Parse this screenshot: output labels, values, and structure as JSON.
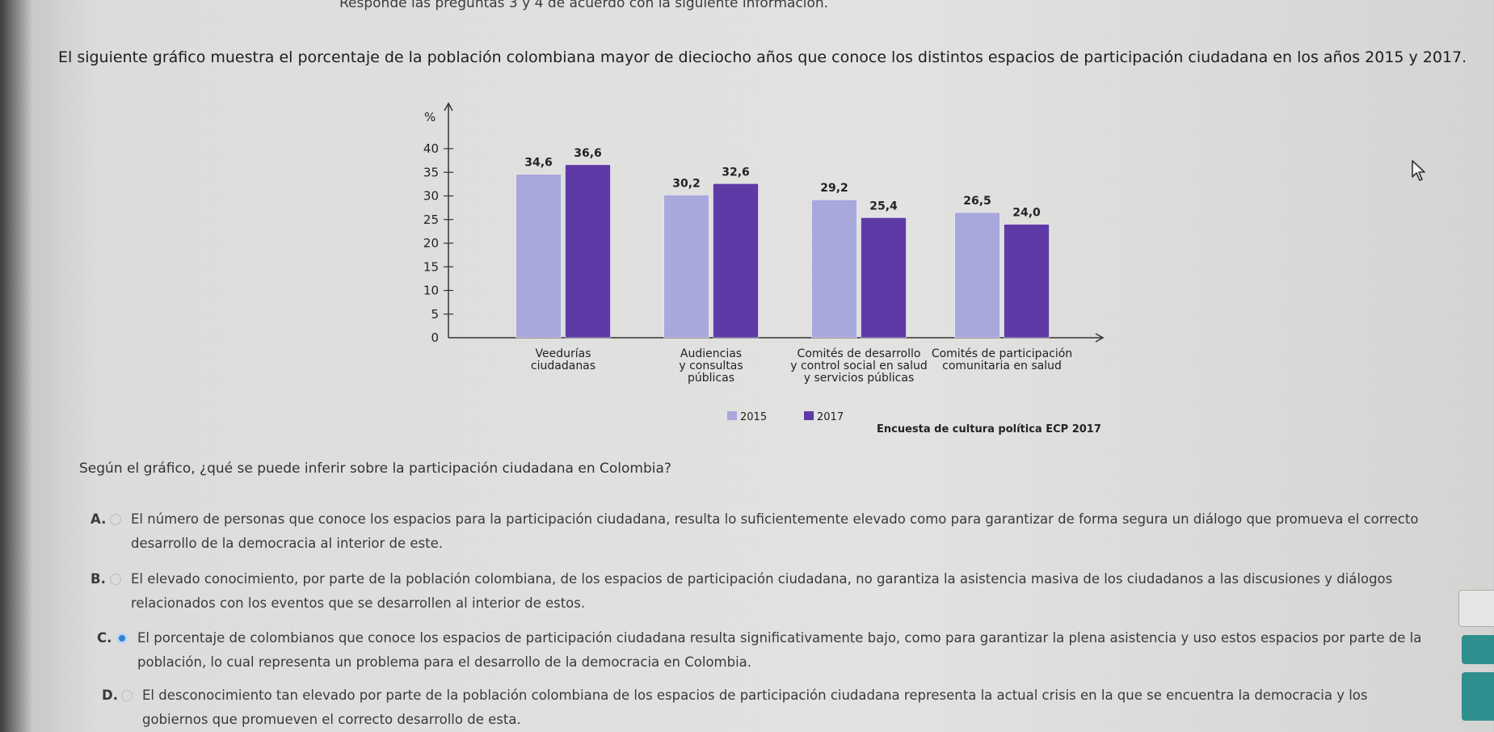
{
  "header": {
    "top_line": "Responde las preguntas 3 y 4 de acuerdo con la siguiente información.",
    "intro": "El siguiente gráfico muestra el porcentaje de la población colombiana mayor de dieciocho años que conoce los distintos espacios de participación ciudadana en los años 2015 y 2017."
  },
  "chart_data": {
    "type": "bar",
    "ylabel": "%",
    "ylim": [
      0,
      40
    ],
    "yticks": [
      0,
      5,
      10,
      15,
      20,
      25,
      30,
      35,
      40
    ],
    "categories": [
      [
        "Veedurías",
        "ciudadanas"
      ],
      [
        "Audiencias",
        "y consultas",
        "públicas"
      ],
      [
        "Comités de desarrollo",
        "y control social en salud",
        "y servicios públicas"
      ],
      [
        "Comités de participación",
        "comunitaria en salud"
      ]
    ],
    "series": [
      {
        "name": "2015",
        "color": "#a8a8dc",
        "values": [
          34.6,
          30.2,
          29.2,
          26.5
        ],
        "labels": [
          "34,6",
          "30,2",
          "29,2",
          "26,5"
        ]
      },
      {
        "name": "2017",
        "color": "#5e3aa6",
        "values": [
          36.6,
          32.6,
          25.4,
          24.0
        ],
        "labels": [
          "36,6",
          "32,6",
          "25,4",
          "24,0"
        ]
      }
    ],
    "legend_position": "bottom",
    "source": "Encuesta de cultura política ECP 2017"
  },
  "question": {
    "text": "Según el gráfico, ¿qué se puede inferir sobre la participación ciudadana en Colombia?",
    "options": [
      {
        "letter": "A.",
        "selected": false,
        "text": "El número de personas que conoce los espacios para la participación ciudadana, resulta lo suficientemente elevado como para garantizar de forma segura un diálogo que promueva el correcto desarrollo de la democracia al interior de este."
      },
      {
        "letter": "B.",
        "selected": false,
        "text": "El elevado conocimiento, por parte de la población colombiana, de los espacios de participación ciudadana, no garantiza la asistencia masiva de los ciudadanos a las discusiones y diálogos relacionados con los eventos que se desarrollen al interior de estos."
      },
      {
        "letter": "C.",
        "selected": true,
        "text": "El porcentaje de colombianos que conoce los espacios de participación ciudadana resulta significativamente bajo, como para garantizar la plena asistencia y uso estos espacios por parte de la población, lo cual representa un problema para el desarrollo de la democracia en Colombia."
      },
      {
        "letter": "D.",
        "selected": false,
        "text": "El desconocimiento tan elevado por parte de la población colombiana de los espacios de participación ciudadana representa la actual crisis en la que se encuentra la democracia y los gobiernos que promueven el correcto desarrollo de esta."
      }
    ]
  },
  "icons": {
    "cursor": "mouse-pointer-icon"
  }
}
